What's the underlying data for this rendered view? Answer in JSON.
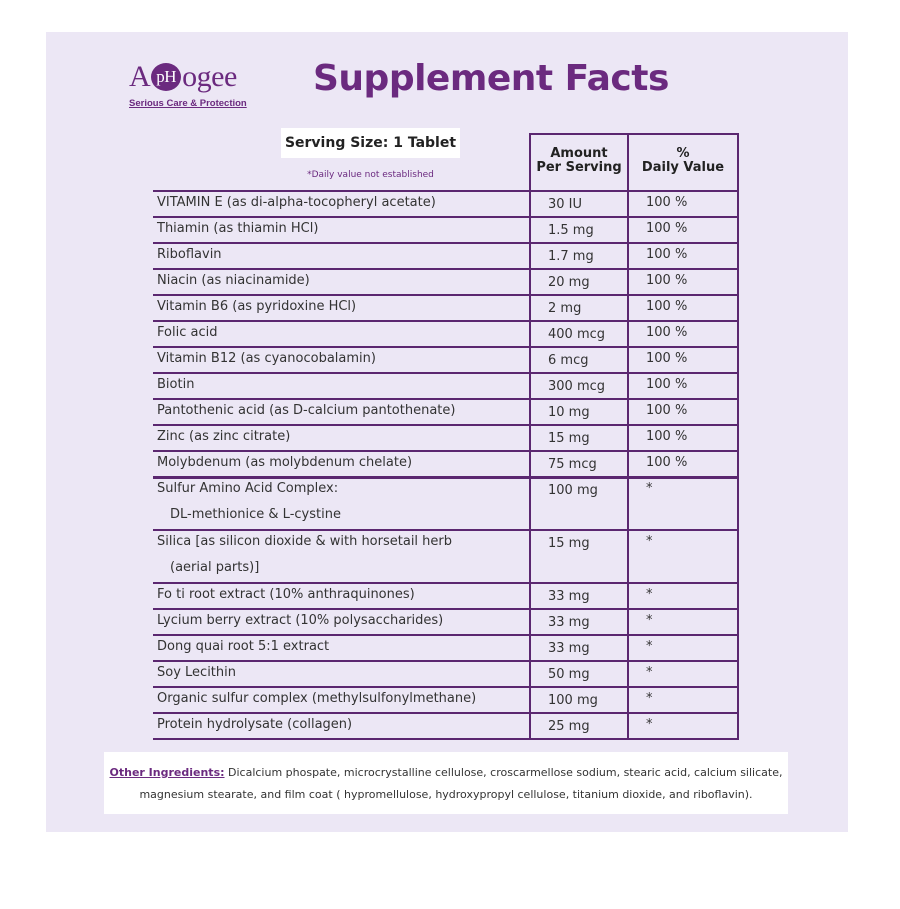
{
  "brand": {
    "logo_prefix": "A",
    "logo_circle": "pH",
    "logo_suffix": "ogee",
    "tagline": "Serious Care & Protection"
  },
  "title": "Supplement Facts",
  "serving_size": "Serving Size: 1 Tablet",
  "dv_note": "*Daily value not established",
  "headers": {
    "amount_line1": "Amount",
    "amount_line2": "Per Serving",
    "dv_line1": "%",
    "dv_line2": "Daily Value"
  },
  "rows": [
    {
      "name": "VITAMIN E (as di-alpha-tocopheryl acetate)",
      "amount": "30 IU",
      "dv": "100 %"
    },
    {
      "name": "Thiamin (as thiamin HCl)",
      "amount": "1.5 mg",
      "dv": "100 %"
    },
    {
      "name": "Riboflavin",
      "amount": "1.7 mg",
      "dv": "100 %"
    },
    {
      "name": "Niacin (as niacinamide)",
      "amount": "20 mg",
      "dv": "100 %"
    },
    {
      "name": "Vitamin B6 (as pyridoxine HCl)",
      "amount": "2 mg",
      "dv": "100 %"
    },
    {
      "name": "Folic acid",
      "amount": "400 mcg",
      "dv": "100 %"
    },
    {
      "name": "Vitamin B12 (as cyanocobalamin)",
      "amount": "6 mcg",
      "dv": "100 %"
    },
    {
      "name": "Biotin",
      "amount": "300 mcg",
      "dv": "100 %"
    },
    {
      "name": "Pantothenic acid (as D-calcium pantothenate)",
      "amount": "10 mg",
      "dv": "100 %"
    },
    {
      "name": "Zinc (as zinc citrate)",
      "amount": "15 mg",
      "dv": "100 %"
    },
    {
      "name": "Molybdenum (as molybdenum chelate)",
      "amount": "75 mcg",
      "dv": "100 %"
    },
    {
      "name": "Sulfur Amino Acid Complex:",
      "name2": "DL-methionice & L-cystine",
      "amount": "100 mg",
      "dv": "*"
    },
    {
      "name": "Silica [as silicon dioxide & with horsetail herb",
      "name2": "(aerial parts)]",
      "amount": "15 mg",
      "dv": "*"
    },
    {
      "name": "Fo ti root extract (10% anthraquinones)",
      "amount": "33 mg",
      "dv": "*"
    },
    {
      "name": "Lycium berry extract (10% polysaccharides)",
      "amount": "33 mg",
      "dv": "*"
    },
    {
      "name": "Dong quai root 5:1 extract",
      "amount": "33 mg",
      "dv": "*"
    },
    {
      "name": "Soy Lecithin",
      "amount": "50 mg",
      "dv": "*"
    },
    {
      "name": "Organic sulfur complex (methylsulfonylmethane)",
      "amount": "100 mg",
      "dv": "*"
    },
    {
      "name": "Protein hydrolysate (collagen)",
      "amount": "25 mg",
      "dv": "*"
    }
  ],
  "other_ingredients": {
    "label": "Other Ingredients:",
    "line1": " Dicalcium phospate, microcrystalline cellulose, croscarmellose sodium, stearic acid, calcium silicate,",
    "line2": "magnesium stearate, and film coat ( hypromellulose, hydroxypropyl cellulose, titanium dioxide, and riboflavin)."
  },
  "colors": {
    "accent": "#6b2a7f",
    "panel": "#ece7f5",
    "rule": "#5b2770"
  }
}
